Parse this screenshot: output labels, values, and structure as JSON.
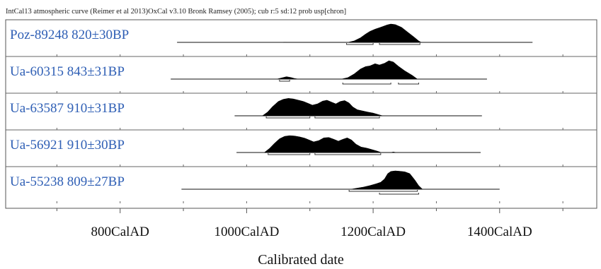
{
  "chart_data": {
    "type": "area",
    "header": "IntCal13 atmospheric curve (Reimer et al 2013)OxCal v3.10 Bronk Ramsey (2005); cub r:5 sd:12 prob usp[chron]",
    "xlabel": "Calibrated date",
    "xlim": [
      600,
      1540
    ],
    "ticks": [
      {
        "value": 700,
        "label": ""
      },
      {
        "value": 800,
        "label": "800CalAD"
      },
      {
        "value": 900,
        "label": ""
      },
      {
        "value": 1000,
        "label": "1000CalAD"
      },
      {
        "value": 1100,
        "label": ""
      },
      {
        "value": 1200,
        "label": "1200CalAD"
      },
      {
        "value": 1300,
        "label": ""
      },
      {
        "value": 1400,
        "label": "1400CalAD"
      },
      {
        "value": 1500,
        "label": ""
      }
    ],
    "series": [
      {
        "label": "Poz-89248  820±30BP",
        "line": [
          890,
          1452
        ],
        "density": [
          [
            1058,
            0.0
          ],
          [
            1061,
            0.01
          ],
          [
            1064,
            0.0
          ],
          [
            1160,
            0.0
          ],
          [
            1170,
            0.08
          ],
          [
            1180,
            0.25
          ],
          [
            1188,
            0.45
          ],
          [
            1195,
            0.6
          ],
          [
            1203,
            0.72
          ],
          [
            1210,
            0.8
          ],
          [
            1215,
            0.86
          ],
          [
            1222,
            0.95
          ],
          [
            1228,
            1.0
          ],
          [
            1235,
            0.97
          ],
          [
            1245,
            0.82
          ],
          [
            1255,
            0.55
          ],
          [
            1265,
            0.28
          ],
          [
            1272,
            0.08
          ],
          [
            1276,
            0.0
          ]
        ],
        "ranges": [
          [
            [
              1158,
              1200
            ],
            [
              1210,
              1274
            ]
          ]
        ]
      },
      {
        "label": "Ua-60315  843±31BP",
        "line": [
          880,
          1380
        ],
        "density": [
          [
            1048,
            0.0
          ],
          [
            1055,
            0.06
          ],
          [
            1063,
            0.13
          ],
          [
            1070,
            0.09
          ],
          [
            1076,
            0.03
          ],
          [
            1082,
            0.0
          ],
          [
            1150,
            0.0
          ],
          [
            1160,
            0.08
          ],
          [
            1170,
            0.28
          ],
          [
            1180,
            0.55
          ],
          [
            1188,
            0.68
          ],
          [
            1195,
            0.72
          ],
          [
            1203,
            0.84
          ],
          [
            1210,
            0.77
          ],
          [
            1218,
            0.86
          ],
          [
            1225,
            1.0
          ],
          [
            1232,
            0.93
          ],
          [
            1240,
            0.7
          ],
          [
            1250,
            0.45
          ],
          [
            1262,
            0.2
          ],
          [
            1270,
            0.0
          ]
        ],
        "ranges": [
          [
            [
              1052,
              1068
            ]
          ],
          [
            [
              1152,
              1228
            ],
            [
              1240,
              1272
            ]
          ]
        ]
      },
      {
        "label": "Ua-63587  910±31BP",
        "line": [
          981,
          1372
        ],
        "density": [
          [
            1025,
            0.0
          ],
          [
            1033,
            0.2
          ],
          [
            1041,
            0.5
          ],
          [
            1050,
            0.78
          ],
          [
            1058,
            0.9
          ],
          [
            1066,
            0.95
          ],
          [
            1074,
            0.92
          ],
          [
            1082,
            0.85
          ],
          [
            1090,
            0.78
          ],
          [
            1097,
            0.68
          ],
          [
            1104,
            0.58
          ],
          [
            1112,
            0.65
          ],
          [
            1120,
            0.8
          ],
          [
            1127,
            0.85
          ],
          [
            1134,
            0.75
          ],
          [
            1141,
            0.65
          ],
          [
            1148,
            0.78
          ],
          [
            1155,
            0.83
          ],
          [
            1162,
            0.7
          ],
          [
            1168,
            0.48
          ],
          [
            1175,
            0.33
          ],
          [
            1183,
            0.27
          ],
          [
            1192,
            0.2
          ],
          [
            1200,
            0.15
          ],
          [
            1208,
            0.07
          ],
          [
            1215,
            0.0
          ]
        ],
        "ranges": [
          [
            [
              1031,
              1100
            ],
            [
              1108,
              1210
            ]
          ]
        ]
      },
      {
        "label": "Ua-56921  910±30BP",
        "line": [
          984,
          1370
        ],
        "density": [
          [
            1028,
            0.0
          ],
          [
            1036,
            0.22
          ],
          [
            1044,
            0.5
          ],
          [
            1052,
            0.75
          ],
          [
            1060,
            0.88
          ],
          [
            1068,
            0.92
          ],
          [
            1076,
            0.9
          ],
          [
            1084,
            0.85
          ],
          [
            1092,
            0.78
          ],
          [
            1099,
            0.68
          ],
          [
            1106,
            0.58
          ],
          [
            1114,
            0.65
          ],
          [
            1122,
            0.8
          ],
          [
            1130,
            0.82
          ],
          [
            1138,
            0.72
          ],
          [
            1145,
            0.62
          ],
          [
            1152,
            0.72
          ],
          [
            1159,
            0.8
          ],
          [
            1166,
            0.68
          ],
          [
            1173,
            0.45
          ],
          [
            1181,
            0.3
          ],
          [
            1190,
            0.24
          ],
          [
            1198,
            0.16
          ],
          [
            1206,
            0.08
          ],
          [
            1213,
            0.0
          ],
          [
            1228,
            0.0
          ],
          [
            1232,
            0.03
          ],
          [
            1236,
            0.0
          ]
        ],
        "ranges": [
          [
            [
              1034,
              1100
            ],
            [
              1108,
              1212
            ]
          ]
        ]
      },
      {
        "label": "Ua-55238  809±27BP",
        "line": [
          897,
          1400
        ],
        "density": [
          [
            1165,
            0.0
          ],
          [
            1175,
            0.06
          ],
          [
            1185,
            0.12
          ],
          [
            1195,
            0.2
          ],
          [
            1205,
            0.3
          ],
          [
            1212,
            0.38
          ],
          [
            1218,
            0.56
          ],
          [
            1223,
            0.85
          ],
          [
            1228,
            0.97
          ],
          [
            1235,
            1.0
          ],
          [
            1242,
            0.98
          ],
          [
            1250,
            0.95
          ],
          [
            1258,
            0.85
          ],
          [
            1266,
            0.5
          ],
          [
            1272,
            0.2
          ],
          [
            1278,
            0.0
          ]
        ],
        "ranges": [
          [
            [
              1162,
              1270
            ]
          ],
          [
            [
              1210,
              1272
            ]
          ]
        ]
      }
    ]
  }
}
